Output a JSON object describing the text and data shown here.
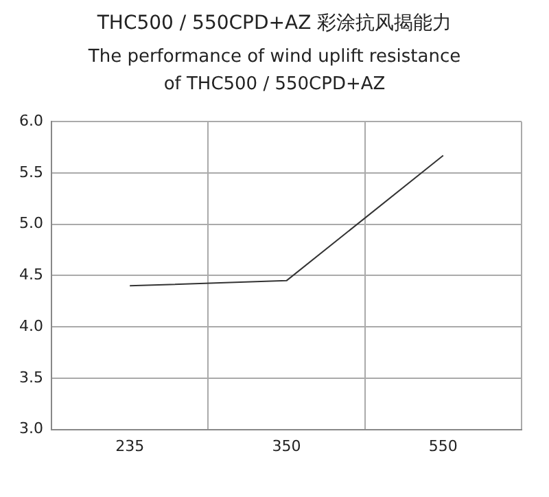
{
  "chart_data": {
    "type": "line",
    "title": "THC500 / 550CPD+AZ 彩涂抗风揭能力",
    "subtitle": "The performance of wind uplift resistance\nof THC500 / 550CPD+AZ",
    "categories": [
      "235",
      "350",
      "550"
    ],
    "series": [
      {
        "color": "#333333",
        "values": [
          4.4,
          4.45,
          5.67
        ]
      }
    ],
    "ylim": [
      3.0,
      6.0
    ],
    "yticks": [
      {
        "value": 3,
        "label": "3.0"
      },
      {
        "value": 3.5,
        "label": "3.5"
      },
      {
        "value": 4,
        "label": "4.0"
      },
      {
        "value": 4.5,
        "label": "4.5"
      },
      {
        "value": 5,
        "label": "5.0"
      },
      {
        "value": 5.5,
        "label": "5.5"
      },
      {
        "value": 6,
        "label": "6.0"
      }
    ],
    "grid": true,
    "legend": false,
    "marker": "none",
    "line_style": "solid"
  }
}
